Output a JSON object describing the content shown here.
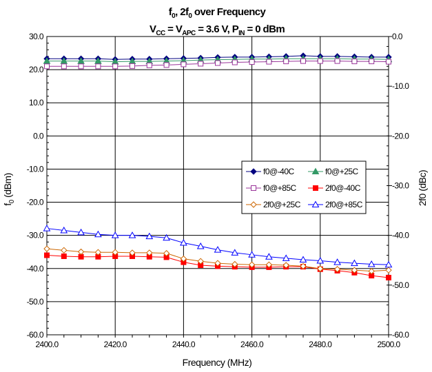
{
  "chart_data": {
    "type": "line",
    "title": {
      "line1": {
        "a": "f",
        "a_sub": "0",
        "b": ", 2f",
        "b_sub": "0",
        "c": " over Frequency"
      },
      "line2": {
        "a": "V",
        "a_sub": "CC",
        "b": " = V",
        "b_sub": "APC",
        "c": " = 3.6 V, P",
        "c_sub": "IN",
        "d": " = 0 dBm"
      }
    },
    "xlabel": "Frequency (MHz)",
    "ylabel_left": {
      "main": "f",
      "sub": "0",
      "rest": " (dBm)"
    },
    "ylabel_right": "2f0 (dBc)",
    "xlim": [
      2400,
      2500
    ],
    "ylim_left": [
      -60,
      30
    ],
    "ylim_right": [
      -60,
      0
    ],
    "x_ticks": [
      "2400.0",
      "2420.0",
      "2440.0",
      "2460.0",
      "2480.0",
      "2500.0"
    ],
    "y_ticks_left": [
      "30.0",
      "20.0",
      "10.0",
      "0.0",
      "-10.0",
      "-20.0",
      "-30.0",
      "-40.0",
      "-50.0",
      "-60.0"
    ],
    "y_ticks_right": [
      "0.0",
      "-10.0",
      "-20.0",
      "-30.0",
      "-40.0",
      "-50.0",
      "-60.0"
    ],
    "grid": true,
    "legend_position": "center-right",
    "x": [
      2400,
      2405,
      2410,
      2415,
      2420,
      2425,
      2430,
      2435,
      2440,
      2445,
      2450,
      2455,
      2460,
      2465,
      2470,
      2475,
      2480,
      2485,
      2490,
      2495,
      2500
    ],
    "series": [
      {
        "name": "f0@-40C",
        "axis": "left",
        "marker": "diamond",
        "fill": true,
        "color": "#000080",
        "values": [
          23.3,
          23.3,
          23.3,
          23.3,
          23.1,
          23.2,
          23.2,
          23.3,
          23.4,
          23.5,
          23.7,
          23.8,
          23.8,
          23.9,
          24.0,
          24.2,
          24.0,
          24.0,
          23.9,
          23.8,
          23.8
        ]
      },
      {
        "name": "f0@+25C",
        "axis": "left",
        "marker": "triangle",
        "fill": true,
        "color": "#339966",
        "values": [
          22.6,
          22.6,
          22.6,
          22.6,
          22.4,
          22.5,
          22.5,
          22.6,
          22.7,
          22.9,
          23.0,
          23.1,
          23.2,
          23.2,
          23.3,
          23.3,
          23.3,
          23.3,
          23.2,
          23.2,
          23.1
        ]
      },
      {
        "name": "f0@+85C",
        "axis": "left",
        "marker": "square",
        "fill": false,
        "color": "#993399",
        "values": [
          21.0,
          21.0,
          21.0,
          21.0,
          21.0,
          21.1,
          21.3,
          21.4,
          21.6,
          21.8,
          22.0,
          22.2,
          22.3,
          22.4,
          22.5,
          22.6,
          22.6,
          22.6,
          22.5,
          22.5,
          22.4
        ]
      },
      {
        "name": "2f0@-40C",
        "axis": "right",
        "marker": "square",
        "fill": true,
        "color": "#ff0000",
        "values": [
          -44.0,
          -44.2,
          -44.3,
          -44.3,
          -44.2,
          -44.2,
          -44.3,
          -44.4,
          -45.4,
          -46.0,
          -46.2,
          -46.3,
          -46.4,
          -46.4,
          -46.3,
          -46.3,
          -46.8,
          -47.1,
          -47.5,
          -48.1,
          -48.5
        ]
      },
      {
        "name": "2f0@+25C",
        "axis": "right",
        "marker": "diamond",
        "fill": false,
        "color": "#cc6600",
        "values": [
          -42.7,
          -43.0,
          -43.3,
          -43.4,
          -43.4,
          -43.5,
          -43.5,
          -43.6,
          -44.7,
          -45.2,
          -45.6,
          -45.8,
          -45.9,
          -45.9,
          -46.0,
          -46.2,
          -46.7,
          -46.8,
          -47.0,
          -47.2,
          -47.0
        ]
      },
      {
        "name": "2f0@+85C",
        "axis": "right",
        "marker": "triangle",
        "fill": false,
        "color": "#0000ff",
        "values": [
          -38.6,
          -39.0,
          -39.4,
          -39.8,
          -40.0,
          -40.0,
          -40.2,
          -40.5,
          -41.5,
          -42.2,
          -42.9,
          -43.5,
          -43.9,
          -44.3,
          -44.6,
          -44.9,
          -45.1,
          -45.4,
          -45.6,
          -45.8,
          -45.9
        ]
      }
    ]
  }
}
